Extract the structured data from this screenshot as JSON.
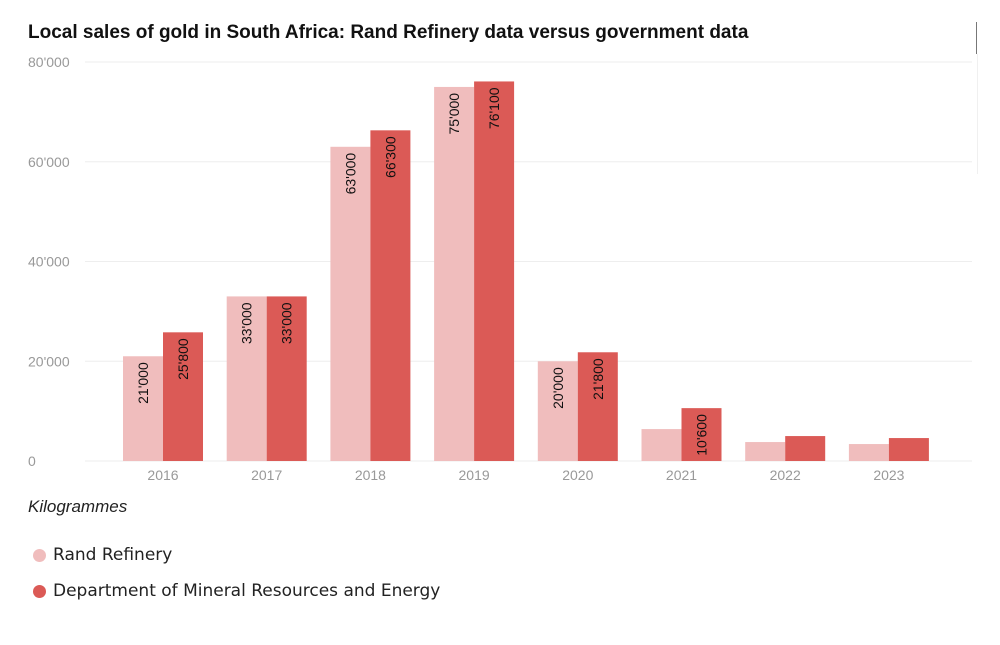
{
  "chart_data": {
    "type": "bar",
    "title": "Local sales of gold in South Africa: Rand Refinery data versus government data",
    "xlabel": "",
    "ylabel": "Kilogrammes",
    "unit_note": "Kilogrammes",
    "ylim": [
      0,
      80000
    ],
    "yticks": [
      0,
      20000,
      40000,
      60000,
      80000
    ],
    "ytick_labels": [
      "0",
      "20'000",
      "40'000",
      "60'000",
      "80'000"
    ],
    "grid": true,
    "legend_position": "bottom-left",
    "categories": [
      "2016",
      "2017",
      "2018",
      "2019",
      "2020",
      "2021",
      "2022",
      "2023"
    ],
    "series": [
      {
        "name": "Rand Refinery",
        "color": "#f0bdbd",
        "values": [
          21000,
          33000,
          63000,
          75000,
          20000,
          6400,
          3800,
          3400
        ],
        "labels": [
          "21'000",
          "33'000",
          "63'000",
          "75'000",
          "20'000",
          "",
          "",
          ""
        ]
      },
      {
        "name": "Department of Mineral Resources and Energy",
        "color": "#db5a56",
        "values": [
          25800,
          33000,
          66300,
          76100,
          21800,
          10600,
          5000,
          4600
        ],
        "labels": [
          "25'800",
          "33'000",
          "66'300",
          "76'100",
          "21'800",
          "10'600",
          "",
          ""
        ]
      }
    ]
  },
  "colors": {
    "axis_text": "#999999",
    "grid": "#eeeeee",
    "label_text": "#111111"
  }
}
